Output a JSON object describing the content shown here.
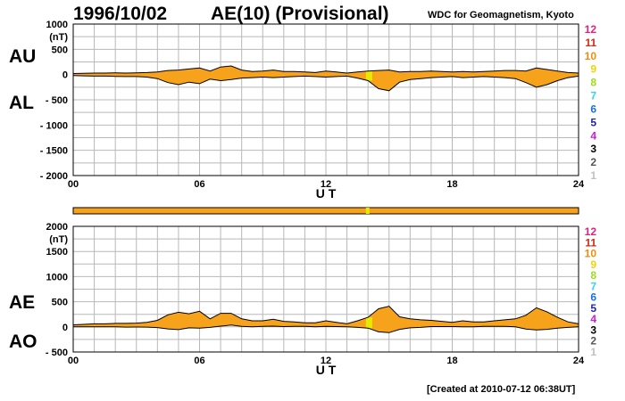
{
  "header": {
    "date": "1996/10/02",
    "title": "AE(10) (Provisional)",
    "source": "WDC for Geomagnetism, Kyoto"
  },
  "footer": {
    "created": "[Created at 2010-07-12 06:38UT]"
  },
  "colors": {
    "fill": "#f7a21b",
    "provisional_mark": "#e8e800",
    "grid": "#b8b8b8",
    "line": "#000000"
  },
  "legend": {
    "items": [
      {
        "label": "12",
        "color": "#e8207a"
      },
      {
        "label": "11",
        "color": "#d02a0f"
      },
      {
        "label": "10",
        "color": "#f08c0a"
      },
      {
        "label": "9",
        "color": "#e8d800"
      },
      {
        "label": "8",
        "color": "#9adf17"
      },
      {
        "label": "7",
        "color": "#30d8e8"
      },
      {
        "label": "6",
        "color": "#1672de"
      },
      {
        "label": "5",
        "color": "#2222a8"
      },
      {
        "label": "4",
        "color": "#d018d8"
      },
      {
        "label": "3",
        "color": "#000000"
      },
      {
        "label": "2",
        "color": "#555555"
      },
      {
        "label": "1",
        "color": "#c0c0c0"
      }
    ]
  },
  "chart_data": [
    {
      "type": "area",
      "panel": "AU/AL",
      "labels": {
        "upper": "AU",
        "lower": "AL"
      },
      "xlabel": "U T",
      "ylabel": "(nT)",
      "xlim": [
        0,
        24
      ],
      "ylim": [
        -2000,
        1000
      ],
      "xticks": [
        "00",
        "06",
        "12",
        "18",
        "24"
      ],
      "yticks": [
        "1000",
        "500",
        "0",
        "- 500",
        "- 1000",
        "- 1500",
        "- 2000"
      ],
      "grid": true,
      "x": [
        0,
        0.5,
        1,
        1.5,
        2,
        2.5,
        3,
        3.5,
        4,
        4.5,
        5,
        5.5,
        6,
        6.5,
        7,
        7.5,
        8,
        8.5,
        9,
        9.5,
        10,
        10.5,
        11,
        11.5,
        12,
        12.5,
        13,
        13.5,
        14,
        14.5,
        15,
        15.5,
        16,
        16.5,
        17,
        17.5,
        18,
        18.5,
        19,
        19.5,
        20,
        20.5,
        21,
        21.5,
        22,
        22.5,
        23,
        23.5,
        24
      ],
      "series": [
        {
          "name": "AU",
          "values": [
            20,
            25,
            30,
            30,
            35,
            30,
            35,
            40,
            50,
            80,
            90,
            110,
            130,
            70,
            150,
            170,
            90,
            60,
            70,
            90,
            60,
            60,
            50,
            40,
            70,
            50,
            30,
            50,
            70,
            80,
            90,
            50,
            60,
            60,
            70,
            60,
            50,
            60,
            50,
            60,
            70,
            80,
            80,
            70,
            130,
            100,
            70,
            40,
            30
          ]
        },
        {
          "name": "AL",
          "values": [
            -20,
            -25,
            -30,
            -30,
            -35,
            -40,
            -40,
            -50,
            -80,
            -160,
            -200,
            -150,
            -180,
            -90,
            -120,
            -100,
            -70,
            -60,
            -50,
            -60,
            -50,
            -40,
            -30,
            -40,
            -50,
            -40,
            -30,
            -70,
            -120,
            -280,
            -320,
            -150,
            -100,
            -80,
            -60,
            -50,
            -40,
            -60,
            -50,
            -40,
            -50,
            -60,
            -80,
            -160,
            -250,
            -200,
            -120,
            -60,
            -30
          ]
        }
      ],
      "provisional_highlight_x": [
        13.9,
        14.2
      ]
    },
    {
      "type": "area",
      "panel": "AE/AO",
      "labels": {
        "upper": "AE",
        "lower": "AO"
      },
      "xlabel": "U T",
      "ylabel": "(nT)",
      "xlim": [
        0,
        24
      ],
      "ylim": [
        -500,
        2000
      ],
      "xticks": [
        "00",
        "06",
        "12",
        "18",
        "24"
      ],
      "yticks": [
        "2000",
        "1500",
        "1000",
        "500",
        "0",
        "- 500"
      ],
      "grid": true,
      "x": [
        0,
        0.5,
        1,
        1.5,
        2,
        2.5,
        3,
        3.5,
        4,
        4.5,
        5,
        5.5,
        6,
        6.5,
        7,
        7.5,
        8,
        8.5,
        9,
        9.5,
        10,
        10.5,
        11,
        11.5,
        12,
        12.5,
        13,
        13.5,
        14,
        14.5,
        15,
        15.5,
        16,
        16.5,
        17,
        17.5,
        18,
        18.5,
        19,
        19.5,
        20,
        20.5,
        21,
        21.5,
        22,
        22.5,
        23,
        23.5,
        24
      ],
      "series": [
        {
          "name": "AE",
          "values": [
            40,
            50,
            60,
            60,
            70,
            70,
            75,
            90,
            130,
            240,
            290,
            260,
            310,
            160,
            270,
            270,
            160,
            120,
            120,
            150,
            110,
            100,
            80,
            80,
            120,
            90,
            60,
            120,
            190,
            360,
            410,
            200,
            160,
            140,
            130,
            110,
            90,
            120,
            100,
            100,
            120,
            140,
            160,
            230,
            380,
            300,
            190,
            100,
            60
          ]
        },
        {
          "name": "AO",
          "values": [
            0,
            0,
            0,
            0,
            0,
            -5,
            -3,
            -5,
            -15,
            -40,
            -55,
            -20,
            -25,
            -10,
            15,
            35,
            10,
            0,
            10,
            15,
            5,
            10,
            10,
            0,
            10,
            5,
            0,
            -10,
            -25,
            -100,
            -115,
            -50,
            -20,
            -10,
            5,
            5,
            5,
            0,
            0,
            10,
            10,
            10,
            0,
            -45,
            -60,
            -50,
            -25,
            -10,
            0
          ]
        }
      ],
      "provisional_highlight_x": [
        13.9,
        14.2
      ]
    }
  ]
}
